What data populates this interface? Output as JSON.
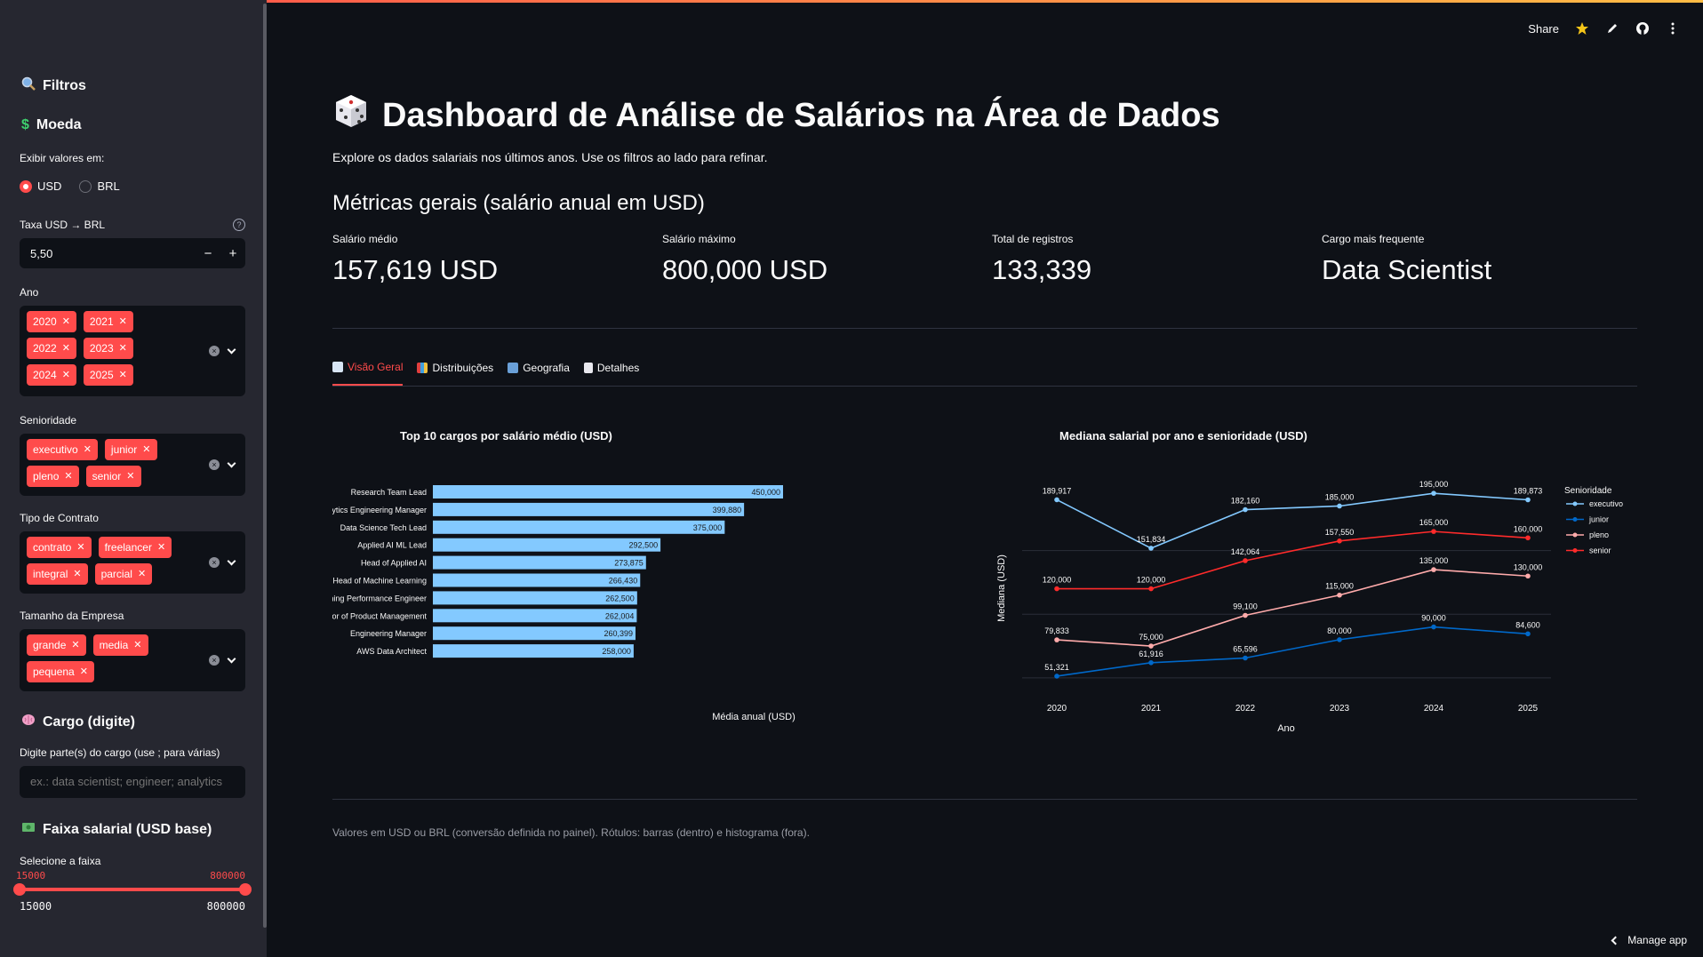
{
  "sidebar": {
    "filters_title": "Filtros",
    "currency_title": "Moeda",
    "display_label": "Exibir valores em:",
    "radio_usd": "USD",
    "radio_brl": "BRL",
    "rate_label": "Taxa USD → BRL",
    "rate_value": "5,50",
    "rate_minus": "−",
    "rate_plus": "+",
    "help": "?",
    "year_label": "Ano",
    "years": [
      "2020",
      "2021",
      "2022",
      "2023",
      "2024",
      "2025"
    ],
    "seniority_label": "Senioridade",
    "seniorities": [
      "executivo",
      "junior",
      "pleno",
      "senior"
    ],
    "contract_label": "Tipo de Contrato",
    "contracts": [
      "contrato",
      "freelancer",
      "integral",
      "parcial"
    ],
    "company_label": "Tamanho da Empresa",
    "companies": [
      "grande",
      "media",
      "pequena"
    ],
    "role_title": "Cargo (digite)",
    "role_label": "Digite parte(s) do cargo (use ; para várias)",
    "role_placeholder": "ex.: data scientist; engineer; analytics",
    "salary_title": "Faixa salarial (USD base)",
    "salary_label": "Selecione a faixa",
    "salary_min": "15000",
    "salary_max": "800000",
    "salary_range_min": "15000",
    "salary_range_max": "800000",
    "salary_selected_fraction": [
      0,
      1
    ]
  },
  "toolbar": {
    "share": "Share"
  },
  "main": {
    "title": "Dashboard de Análise de Salários na Área de Dados",
    "subtitle": "Explore os dados salariais nos últimos anos. Use os filtros ao lado para refinar.",
    "metrics_title": "Métricas gerais (salário anual em USD)",
    "metrics": [
      {
        "label": "Salário médio",
        "value": "157,619 USD"
      },
      {
        "label": "Salário máximo",
        "value": "800,000 USD"
      },
      {
        "label": "Total de registros",
        "value": "133,339"
      },
      {
        "label": "Cargo mais frequente",
        "value": "Data Scientist"
      }
    ],
    "tabs": [
      "Visão Geral",
      "Distribuições",
      "Geografia",
      "Detalhes"
    ],
    "footer": "Valores em USD ou BRL (conversão definida no painel). Rótulos: barras (dentro) e histograma (fora).",
    "manage": "Manage app"
  },
  "colors": {
    "accent": "#ff4b4b",
    "bar": "#83c9ff",
    "executivo": "#83c9ff",
    "junior": "#0068c9",
    "pleno": "#ffabab",
    "senior": "#ff2b2b"
  },
  "chart_data": [
    {
      "type": "bar",
      "orientation": "horizontal",
      "title": "Top 10 cargos por salário médio (USD)",
      "xlabel": "Média anual (USD)",
      "ylabel": "",
      "categories": [
        "Research Team Lead",
        "Analytics Engineering Manager",
        "Data Science Tech Lead",
        "Applied AI ML Lead",
        "Head of Applied AI",
        "Head of Machine Learning",
        "Machine Learning Performance Engineer",
        "Director of Product Management",
        "Engineering Manager",
        "AWS Data Architect"
      ],
      "values": [
        450000,
        399880,
        375000,
        292500,
        273875,
        266430,
        262500,
        262004,
        260399,
        258000
      ],
      "value_labels": [
        "450,000",
        "399,880",
        "375,000",
        "292,500",
        "273,875",
        "266,430",
        "262,500",
        "262,004",
        "260,399",
        "258,000"
      ],
      "xlim": [
        0,
        450000
      ]
    },
    {
      "type": "line",
      "title": "Mediana salarial por ano e senioridade (USD)",
      "xlabel": "Ano",
      "ylabel": "Mediana (USD)",
      "legend_title": "Senioridade",
      "legend_position": "right",
      "x": [
        "2020",
        "2021",
        "2022",
        "2023",
        "2024",
        "2025"
      ],
      "ylim": [
        45000,
        200000
      ],
      "series": [
        {
          "name": "executivo",
          "values": [
            189917,
            151834,
            182160,
            185000,
            195000,
            189873
          ],
          "labels": [
            "189,917",
            "151,834",
            "182,160",
            "185,000",
            "195,000",
            "189,873"
          ]
        },
        {
          "name": "junior",
          "values": [
            51321,
            61916,
            65596,
            80000,
            90000,
            84600
          ],
          "labels": [
            "51,321",
            "61,916",
            "65,596",
            "80,000",
            "90,000",
            "84,600"
          ]
        },
        {
          "name": "pleno",
          "values": [
            79833,
            75000,
            99100,
            115000,
            135000,
            130000
          ],
          "labels": [
            "79,833",
            "75,000",
            "99,100",
            "115,000",
            "135,000",
            "130,000"
          ]
        },
        {
          "name": "senior",
          "values": [
            120000,
            120000,
            142064,
            157550,
            165000,
            160000
          ],
          "labels": [
            "120,000",
            "120,000",
            "142,064",
            "157,550",
            "165,000",
            "160,000"
          ]
        }
      ]
    }
  ]
}
